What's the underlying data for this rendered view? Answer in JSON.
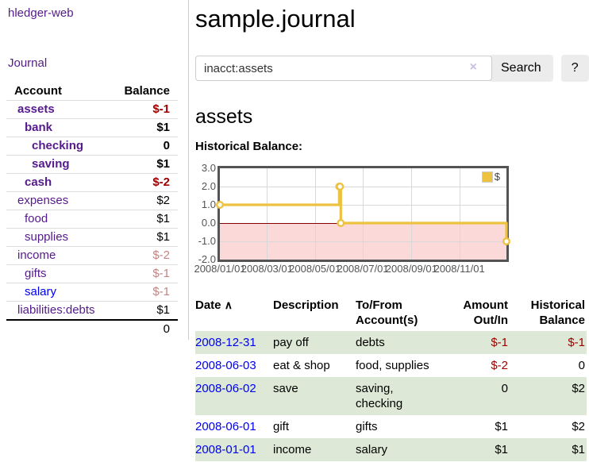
{
  "app": {
    "title": "hledger-web"
  },
  "sidebar": {
    "journal_link": "Journal",
    "accounts": {
      "col_account": "Account",
      "col_balance": "Balance",
      "rows": [
        {
          "account": "assets",
          "balance": "$-1",
          "depth": 1,
          "bold": true,
          "balance_style": "neg",
          "link": "visited"
        },
        {
          "account": "bank",
          "balance": "$1",
          "depth": 2,
          "bold": true,
          "balance_style": "none",
          "link": "visited"
        },
        {
          "account": "checking",
          "balance": "0",
          "depth": 3,
          "bold": true,
          "balance_style": "none",
          "link": "visited"
        },
        {
          "account": "saving",
          "balance": "$1",
          "depth": 3,
          "bold": true,
          "balance_style": "none",
          "link": "visited"
        },
        {
          "account": "cash",
          "balance": "$-2",
          "depth": 2,
          "bold": true,
          "balance_style": "neg",
          "link": "visited"
        },
        {
          "account": "expenses",
          "balance": "$2",
          "depth": 1,
          "bold": false,
          "balance_style": "none",
          "link": "visited"
        },
        {
          "account": "food",
          "balance": "$1",
          "depth": 2,
          "bold": false,
          "balance_style": "none",
          "link": "visited"
        },
        {
          "account": "supplies",
          "balance": "$1",
          "depth": 2,
          "bold": false,
          "balance_style": "none",
          "link": "visited"
        },
        {
          "account": "income",
          "balance": "$-2",
          "depth": 1,
          "bold": false,
          "balance_style": "negfade",
          "link": "visited"
        },
        {
          "account": "gifts",
          "balance": "$-1",
          "depth": 2,
          "bold": false,
          "balance_style": "negfade",
          "link": "visited"
        },
        {
          "account": "salary",
          "balance": "$-1",
          "depth": 2,
          "bold": false,
          "balance_style": "negfade",
          "link": "unvisited"
        },
        {
          "account": "liabilities:debts",
          "balance": "$1",
          "depth": 1,
          "bold": false,
          "balance_style": "none",
          "link": "visited"
        }
      ],
      "total": "0"
    }
  },
  "main": {
    "page_title": "sample.journal",
    "search": {
      "value": "inacct:assets",
      "clear_icon": "×",
      "button_label": "Search",
      "help_label": "?"
    },
    "account_heading": "assets",
    "chart_label": "Historical Balance:"
  },
  "chart_data": {
    "type": "line",
    "step": true,
    "title": "Historical Balance:",
    "series": [
      {
        "name": "$",
        "color": "#edc240",
        "points": [
          [
            "2008-01-01",
            1
          ],
          [
            "2008-06-01",
            2
          ],
          [
            "2008-06-02",
            2
          ],
          [
            "2008-06-03",
            0
          ],
          [
            "2008-12-31",
            -1
          ]
        ]
      }
    ],
    "xlim": [
      "2008-01-01",
      "2008-12-31"
    ],
    "ylim": [
      -2,
      3
    ],
    "yticks": [
      3,
      2,
      1,
      0,
      -1,
      -2
    ],
    "ytick_labels": [
      "3.0",
      "2.0",
      "1.0",
      "0.0",
      "-1.0",
      "-2.0"
    ],
    "xticks": [
      {
        "date": "2008-01-01",
        "label": "2008/01/01"
      },
      {
        "date": "2008-03-01",
        "label": "2008/03/01"
      },
      {
        "date": "2008-05-01",
        "label": "2008/05/01"
      },
      {
        "date": "2008-07-01",
        "label": "2008/07/01"
      },
      {
        "date": "2008-09-01",
        "label": "2008/09/01"
      },
      {
        "date": "2008-11-01",
        "label": "2008/11/01"
      }
    ],
    "grid": true,
    "grid_color": "#d8d8d8",
    "border_color": "#545454",
    "negative_region_color": "#fcd9d9",
    "zero_line_color": "#800000",
    "legend_position": "top-right"
  },
  "register": {
    "sort_icon": "∧",
    "headers": {
      "date": "Date",
      "description": "Description",
      "accounts": "To/From Account(s)",
      "amount": "Amount Out/In",
      "balance": "Historical Balance"
    },
    "rows": [
      {
        "date": "2008-12-31",
        "description": "pay off",
        "accounts": "debts",
        "amount": "$-1",
        "amount_neg": true,
        "balance": "$-1",
        "balance_neg": true,
        "shaded": true
      },
      {
        "date": "2008-06-03",
        "description": "eat & shop",
        "accounts": "food, supplies",
        "amount": "$-2",
        "amount_neg": true,
        "balance": "0",
        "balance_neg": false,
        "shaded": false
      },
      {
        "date": "2008-06-02",
        "description": "save",
        "accounts": "saving, checking",
        "amount": "0",
        "amount_neg": false,
        "balance": "$2",
        "balance_neg": false,
        "shaded": true
      },
      {
        "date": "2008-06-01",
        "description": "gift",
        "accounts": "gifts",
        "amount": "$1",
        "amount_neg": false,
        "balance": "$2",
        "balance_neg": false,
        "shaded": false
      },
      {
        "date": "2008-01-01",
        "description": "income",
        "accounts": "salary",
        "amount": "$1",
        "amount_neg": false,
        "balance": "$1",
        "balance_neg": false,
        "shaded": true
      }
    ]
  },
  "colors": {
    "visited_link_purple": "#551a8b",
    "unvisited_link_blue": "#0000ee",
    "negative_red": "#a00000",
    "negative_faded_red": "#c38484",
    "row_stripe_green": "#dde9d6",
    "series_yellow": "#edc240"
  }
}
